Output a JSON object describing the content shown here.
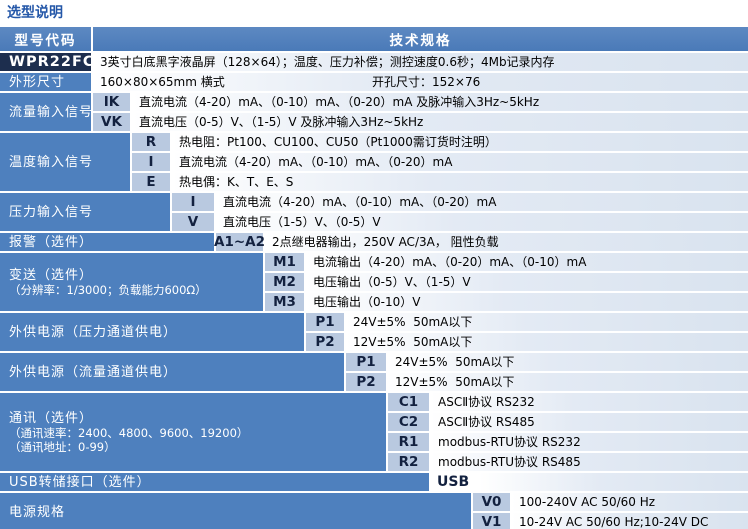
{
  "title": "选型说明",
  "header": {
    "model_code": "型号代码",
    "tech_spec": "技术规格"
  },
  "colors": {
    "header_blue": "#4d7ebf",
    "label_blue": "#4e80be",
    "code_cell_blue": "#b9c9e0",
    "model_cell_navy": "#1d2e4e",
    "spec_tint": "#d9e3ef",
    "title_blue": "#2457a8"
  },
  "groups": [
    {
      "label_lines": [
        "WPR22FC-"
      ],
      "rows": [
        {
          "spec": "3英寸白底黑字液晶屏（128×64）；温度、压力补偿；测控速度0.6秒；4Mb记录内存"
        }
      ]
    },
    {
      "label_lines": [
        "外形尺寸"
      ],
      "rows": [
        {
          "spec": "160×80×65mm 横式",
          "spec2": "开孔尺寸：152×76"
        }
      ]
    },
    {
      "label_lines": [
        "流量输入信号"
      ],
      "rows": [
        {
          "code": "IK",
          "spec": "直流电流（4-20）mA、（0-10）mA、（0-20）mA 及脉冲输入3Hz~5kHz"
        },
        {
          "code": "VK",
          "spec": "直流电压（0-5）V、（1-5）V 及脉冲输入3Hz~5kHz"
        }
      ]
    },
    {
      "label_lines": [
        "温度输入信号"
      ],
      "rows": [
        {
          "code": "R",
          "spec": "热电阻：Pt100、CU100、CU50（Pt1000需订货时注明）"
        },
        {
          "code": "I",
          "spec": "直流电流（4-20）mA、（0-10）mA、（0-20）mA"
        },
        {
          "code": "E",
          "spec": "热电偶：K、T、E、S"
        }
      ]
    },
    {
      "label_lines": [
        "压力输入信号"
      ],
      "rows": [
        {
          "code": "I",
          "spec": "直流电流（4-20）mA、（0-10）mA、（0-20）mA"
        },
        {
          "code": "V",
          "spec": "直流电压（1-5）V、（0-5）V"
        }
      ]
    },
    {
      "label_lines": [
        "报警（选件）"
      ],
      "rows": [
        {
          "code": "A1~A2",
          "spec": "2点继电器输出，250V AC/3A， 阻性负载"
        }
      ]
    },
    {
      "label_lines": [
        "变送（选件）",
        "（分辨率：1/3000；负载能力600Ω）"
      ],
      "rows": [
        {
          "code": "M1",
          "spec": "电流输出（4-20）mA、（0-20）mA、（0-10）mA"
        },
        {
          "code": "M2",
          "spec": "电压输出（0-5）V、（1-5）V"
        },
        {
          "code": "M3",
          "spec": "电压输出（0-10）V"
        }
      ]
    },
    {
      "label_lines": [
        "外供电源（压力通道供电）"
      ],
      "rows": [
        {
          "code": "P1",
          "spec": "24V±5%  50mA以下"
        },
        {
          "code": "P2",
          "spec": "12V±5%  50mA以下"
        }
      ]
    },
    {
      "label_lines": [
        "外供电源（流量通道供电）"
      ],
      "rows": [
        {
          "code": "P1",
          "spec": "24V±5%  50mA以下"
        },
        {
          "code": "P2",
          "spec": "12V±5%  50mA以下"
        }
      ]
    },
    {
      "label_lines": [
        "通讯（选件）",
        "（通讯速率：2400、4800、9600、19200）",
        "（通讯地址：0-99）"
      ],
      "rows": [
        {
          "code": "C1",
          "spec": "ASCⅡ协议 RS232"
        },
        {
          "code": "C2",
          "spec": "ASCⅡ协议 RS485"
        },
        {
          "code": "R1",
          "spec": "modbus-RTU协议 RS232"
        },
        {
          "code": "R2",
          "spec": "modbus-RTU协议 RS485"
        }
      ]
    },
    {
      "label_lines": [
        "USB转储接口（选件）"
      ],
      "rows": [
        {
          "code": "USB",
          "spec": ""
        }
      ]
    },
    {
      "label_lines": [
        "电源规格"
      ],
      "rows": [
        {
          "code": "V0",
          "spec": "100-240V AC 50/60 Hz"
        },
        {
          "code": "V1",
          "spec": "10-24V AC 50/60 Hz;10-24V DC"
        }
      ]
    }
  ]
}
